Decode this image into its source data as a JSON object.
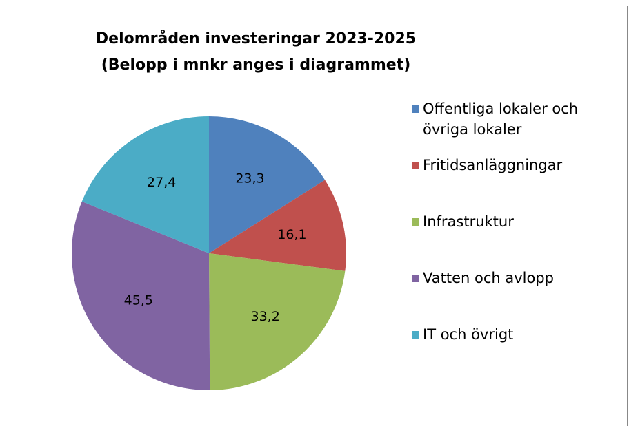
{
  "chart_data": {
    "type": "pie",
    "title": "Delområden investeringar 2023-2025",
    "subtitle": "(Belopp i mnkr anges i diagrammet)",
    "categories": [
      "Offentliga lokaler och övriga lokaler",
      "Fritidsanläggningar",
      "Infrastruktur",
      "Vatten och avlopp",
      "IT och övrigt"
    ],
    "values": [
      23.3,
      16.1,
      33.2,
      45.5,
      27.4
    ],
    "value_labels": [
      "23,3",
      "16,1",
      "33,2",
      "45,5",
      "27,4"
    ],
    "colors": [
      "#4f81bd",
      "#c0504d",
      "#9bbb59",
      "#8064a2",
      "#4bacc6"
    ],
    "legend": "right"
  }
}
